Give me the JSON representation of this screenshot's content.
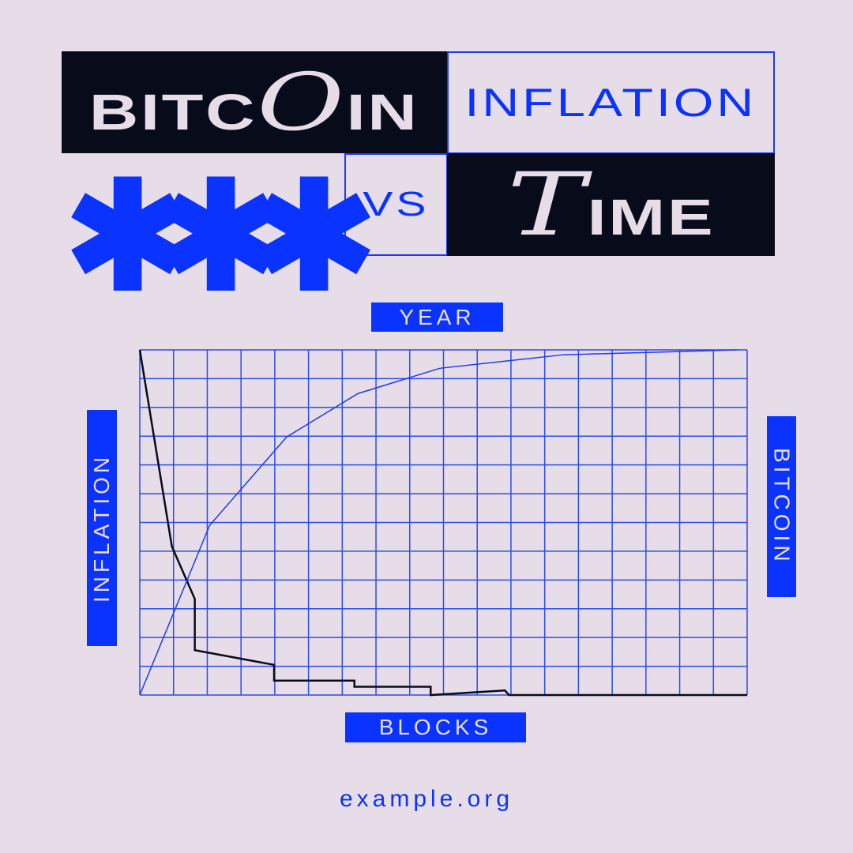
{
  "title": {
    "word1_prefix": "BITC",
    "word1_script": "O",
    "word1_suffix": "IN",
    "word2": "INFLATION",
    "word3": "VS",
    "word4_script": "T",
    "word4_suffix": "IME",
    "decoration_icon": "asterisk-icon"
  },
  "chart_data": {
    "type": "line",
    "top_label": "YEAR",
    "xlabel": "BLOCKS",
    "ylabel": "INFLATION",
    "ylabel_right": "BITCOIN",
    "grid": true,
    "grid_columns": 18,
    "grid_rows": 12,
    "xlim": [
      0,
      18
    ],
    "ylim": [
      0,
      12
    ],
    "series": [
      {
        "name": "INFLATION",
        "color": "#080c1a",
        "points": [
          [
            0,
            12
          ],
          [
            0.95,
            5.17
          ],
          [
            1.63,
            3.34
          ],
          [
            1.63,
            1.56
          ],
          [
            3.98,
            1.05
          ],
          [
            3.98,
            0.5
          ],
          [
            6.36,
            0.5
          ],
          [
            6.36,
            0.29
          ],
          [
            8.62,
            0.29
          ],
          [
            8.62,
            0
          ],
          [
            10.82,
            0.16
          ],
          [
            10.94,
            0
          ],
          [
            18,
            0
          ]
        ]
      },
      {
        "name": "BITCOIN",
        "color": "#1a3cf0",
        "points": [
          [
            0,
            0
          ],
          [
            2.07,
            5.9
          ],
          [
            4.35,
            8.97
          ],
          [
            6.46,
            10.48
          ],
          [
            8.89,
            11.36
          ],
          [
            12.55,
            11.83
          ],
          [
            17.7,
            12
          ]
        ]
      }
    ]
  },
  "footer": {
    "url": "example.org"
  },
  "colors": {
    "background": "#e6dde8",
    "dark": "#080c1a",
    "accent": "#0a33ff"
  }
}
